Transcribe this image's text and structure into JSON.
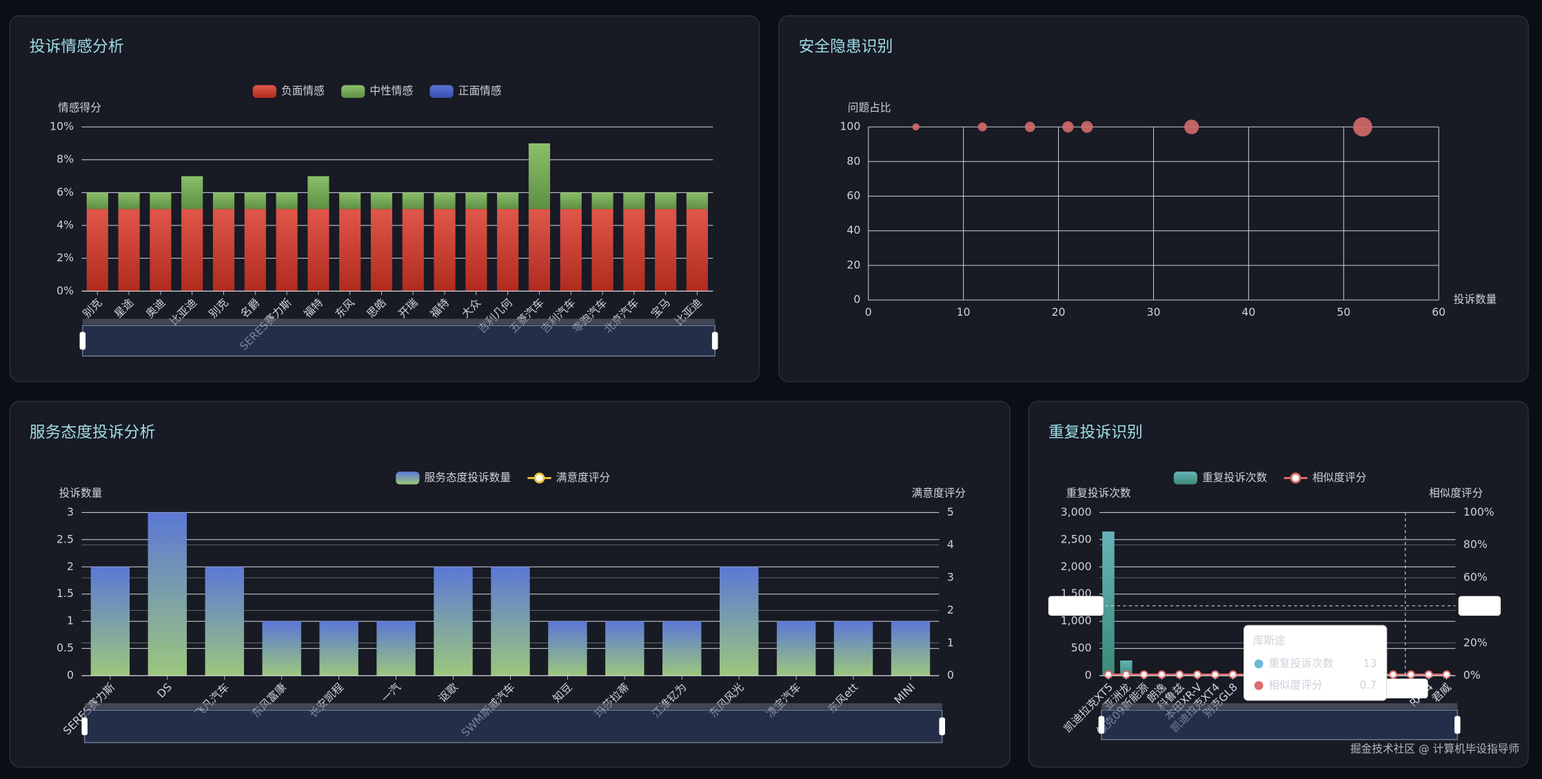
{
  "watermark": "掘金技术社区 @ 计算机毕设指导师",
  "chart_data": [
    {
      "type": "bar",
      "stacked": true,
      "title": "投诉情感分析",
      "y_label": "情感得分",
      "categories": [
        "别克",
        "星途",
        "奥迪",
        "比亚迪",
        "别克",
        "名爵",
        "SERES赛力斯",
        "福特",
        "东风",
        "思皓",
        "开瑞",
        "福特",
        "大众",
        "吉利几何",
        "五菱汽车",
        "吉利汽车",
        "零跑汽车",
        "北京汽车",
        "宝马",
        "比亚迪"
      ],
      "series": [
        {
          "name": "负面情感",
          "color": "#e0574a",
          "color_end": "#b02a1e",
          "values": [
            5,
            5,
            5,
            5,
            5,
            5,
            5,
            5,
            5,
            5,
            5,
            5,
            5,
            5,
            5,
            5,
            5,
            5,
            5,
            5
          ]
        },
        {
          "name": "中性情感",
          "color": "#8cbf6a",
          "color_end": "#5e8f44",
          "values": [
            1,
            1,
            1,
            2,
            1,
            1,
            1,
            2,
            1,
            1,
            1,
            1,
            1,
            1,
            4,
            1,
            1,
            1,
            1,
            1
          ]
        },
        {
          "name": "正面情感",
          "color": "#5a74d6",
          "color_end": "#3a4fae",
          "values": [
            0,
            0,
            0,
            0,
            0,
            0,
            0,
            0,
            0,
            0,
            0,
            0,
            0,
            0,
            0,
            0,
            0,
            0,
            0,
            0
          ]
        }
      ],
      "ylim": [
        0,
        10
      ],
      "yticks": [
        {
          "value": 0,
          "label": "0%"
        },
        {
          "value": 2,
          "label": "2%"
        },
        {
          "value": 4,
          "label": "4%"
        },
        {
          "value": 6,
          "label": "6%"
        },
        {
          "value": 8,
          "label": "8%"
        },
        {
          "value": 10,
          "label": "10%"
        }
      ],
      "grid": true,
      "legend": "top"
    },
    {
      "type": "scatter",
      "title": "安全隐患识别",
      "x_label": "投诉数量",
      "y_label": "问题占比",
      "x": [
        5,
        12,
        17,
        21,
        23,
        34,
        52
      ],
      "values": [
        100,
        100,
        100,
        100,
        100,
        100,
        100
      ],
      "color": "#d46a6a",
      "xlim": [
        0,
        60
      ],
      "xticks": [
        0,
        10,
        20,
        30,
        40,
        50,
        60
      ],
      "ylim": [
        0,
        100
      ],
      "yticks": [
        0,
        20,
        40,
        60,
        80,
        100
      ],
      "grid": true
    },
    {
      "type": "bar",
      "title": "服务态度投诉分析",
      "y_label": "投诉数量",
      "y2_label": "满意度评分",
      "categories": [
        "SERES赛力斯",
        "DS",
        "飞凡汽车",
        "东风富康",
        "长安凯程",
        "一汽",
        "讴歌",
        "SWM斯威汽车",
        "知豆",
        "玛莎拉蒂",
        "江淮钇为",
        "东风风光",
        "凌宝汽车",
        "东风ett",
        "MINI"
      ],
      "series": [
        {
          "name": "服务态度投诉数量",
          "color": "#5b78d6",
          "color_end": "#9cc77d",
          "values": [
            2,
            3,
            2,
            1,
            1,
            1,
            2,
            2,
            1,
            1,
            1,
            2,
            1,
            1,
            1
          ]
        },
        {
          "name": "满意度评分",
          "type": "line",
          "axis": "y2",
          "color": "#f0c23a",
          "values": [
            null,
            null,
            null,
            null,
            null,
            null,
            null,
            null,
            null,
            null,
            null,
            null,
            null,
            null,
            null
          ]
        }
      ],
      "ylim": [
        0,
        3
      ],
      "yticks": [
        0,
        0.5,
        1,
        1.5,
        2,
        2.5,
        3
      ],
      "y2lim": [
        0,
        5
      ],
      "y2ticks": [
        0,
        1,
        2,
        3,
        4,
        5
      ],
      "grid": true,
      "legend": "top"
    },
    {
      "type": "bar",
      "title": "重复投诉识别",
      "y_label": "重复投诉次数",
      "y2_label": "相似度评分",
      "categories": [
        "凯迪拉克XT5",
        "亚洲龙",
        "领克09新能源",
        "朗逸",
        "科鲁兹",
        "本田XR-V",
        "凯迪拉克XT4",
        "别克GL8",
        null,
        null,
        null,
        null,
        null,
        null,
        null,
        null,
        null,
        null,
        "RAV4",
        "君威"
      ],
      "series": [
        {
          "name": "重复投诉次数",
          "color": "#66b3b8",
          "color_end": "#3b8a78",
          "values": [
            2650,
            280,
            20,
            18,
            15,
            20,
            16,
            14,
            18,
            15,
            12,
            14,
            16,
            13,
            15,
            12,
            14,
            13,
            12,
            15
          ]
        },
        {
          "name": "相似度评分",
          "type": "line",
          "axis": "y2",
          "color": "#e06c6c",
          "values": [
            0.7,
            0.7,
            0.7,
            0.7,
            0.7,
            0.7,
            0.7,
            0.7,
            0.7,
            0.7,
            0.7,
            0.7,
            0.7,
            0.7,
            0.7,
            0.7,
            0.7,
            0.7,
            0.7,
            0.7
          ]
        }
      ],
      "ylim": [
        0,
        3000
      ],
      "yticks": [
        0,
        500,
        {
          "value": 1000,
          "label": "1,000"
        },
        {
          "value": 1500,
          "label": "1,500"
        },
        {
          "value": 2000,
          "label": "2,000"
        },
        {
          "value": 2500,
          "label": "2,500"
        },
        {
          "value": 3000,
          "label": "3,000"
        }
      ],
      "y2lim": [
        0,
        100
      ],
      "y2ticks": [
        {
          "value": 0,
          "label": "0%"
        },
        {
          "value": 20,
          "label": "20%"
        },
        {
          "value": 40,
          "label": "40%"
        },
        {
          "value": 60,
          "label": "60%"
        },
        {
          "value": 80,
          "label": "80%"
        },
        {
          "value": 100,
          "label": "100%"
        }
      ],
      "grid": true,
      "legend": "top",
      "tooltip": {
        "title": "库斯途",
        "rows": [
          {
            "name": "重复投诉次数",
            "value": 13
          },
          {
            "name": "相似度评分",
            "value": 0.7
          }
        ]
      }
    }
  ]
}
